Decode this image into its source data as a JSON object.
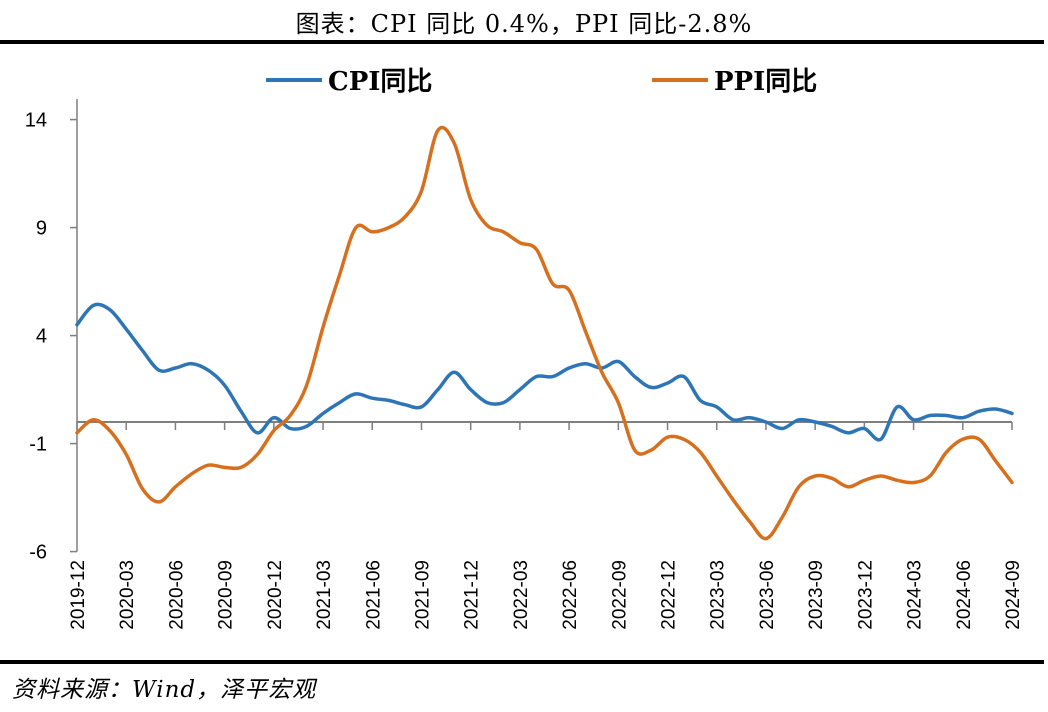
{
  "title": "图表：CPI 同比 0.4%，PPI 同比-2.8%",
  "source": "资料来源：Wind，泽平宏观",
  "colors": {
    "cpi": "#2e75b6",
    "ppi": "#d6701e",
    "axis": "#7f7f7f"
  },
  "chart_data": {
    "type": "line",
    "title": "图表：CPI 同比 0.4%，PPI 同比-2.8%",
    "xlabel": "",
    "ylabel": "",
    "ylim": [
      -6,
      14
    ],
    "yticks": [
      14,
      9,
      4,
      -1,
      -6
    ],
    "legend_position": "top",
    "grid": false,
    "x": [
      "2019-12",
      "2020-01",
      "2020-02",
      "2020-03",
      "2020-04",
      "2020-05",
      "2020-06",
      "2020-07",
      "2020-08",
      "2020-09",
      "2020-10",
      "2020-11",
      "2020-12",
      "2021-01",
      "2021-02",
      "2021-03",
      "2021-04",
      "2021-05",
      "2021-06",
      "2021-07",
      "2021-08",
      "2021-09",
      "2021-10",
      "2021-11",
      "2021-12",
      "2022-01",
      "2022-02",
      "2022-03",
      "2022-04",
      "2022-05",
      "2022-06",
      "2022-07",
      "2022-08",
      "2022-09",
      "2022-10",
      "2022-11",
      "2022-12",
      "2023-01",
      "2023-02",
      "2023-03",
      "2023-04",
      "2023-05",
      "2023-06",
      "2023-07",
      "2023-08",
      "2023-09",
      "2023-10",
      "2023-11",
      "2023-12",
      "2024-01",
      "2024-02",
      "2024-03",
      "2024-04",
      "2024-05",
      "2024-06",
      "2024-07",
      "2024-08",
      "2024-09"
    ],
    "xtick_labels": [
      "2019-12",
      "2020-03",
      "2020-06",
      "2020-09",
      "2020-12",
      "2021-03",
      "2021-06",
      "2021-09",
      "2021-12",
      "2022-03",
      "2022-06",
      "2022-09",
      "2022-12",
      "2023-03",
      "2023-06",
      "2023-09",
      "2023-12",
      "2024-03",
      "2024-06",
      "2024-09"
    ],
    "series": [
      {
        "name": "CPI同比",
        "values": [
          4.5,
          5.4,
          5.2,
          4.3,
          3.3,
          2.4,
          2.5,
          2.7,
          2.4,
          1.7,
          0.5,
          -0.5,
          0.2,
          -0.3,
          -0.2,
          0.4,
          0.9,
          1.3,
          1.1,
          1.0,
          0.8,
          0.7,
          1.5,
          2.3,
          1.5,
          0.9,
          0.9,
          1.5,
          2.1,
          2.1,
          2.5,
          2.7,
          2.5,
          2.8,
          2.1,
          1.6,
          1.8,
          2.1,
          1.0,
          0.7,
          0.1,
          0.2,
          0.0,
          -0.3,
          0.1,
          0.0,
          -0.2,
          -0.5,
          -0.3,
          -0.8,
          0.7,
          0.1,
          0.3,
          0.3,
          0.2,
          0.5,
          0.6,
          0.4
        ]
      },
      {
        "name": "PPI同比",
        "values": [
          -0.5,
          0.1,
          -0.4,
          -1.5,
          -3.1,
          -3.7,
          -3.0,
          -2.4,
          -2.0,
          -2.1,
          -2.1,
          -1.5,
          -0.4,
          0.3,
          1.7,
          4.4,
          6.8,
          9.0,
          8.8,
          9.0,
          9.5,
          10.7,
          13.5,
          12.9,
          10.3,
          9.1,
          8.8,
          8.3,
          8.0,
          6.4,
          6.1,
          4.2,
          2.3,
          0.9,
          -1.3,
          -1.3,
          -0.7,
          -0.8,
          -1.4,
          -2.5,
          -3.6,
          -4.6,
          -5.4,
          -4.4,
          -3.0,
          -2.5,
          -2.6,
          -3.0,
          -2.7,
          -2.5,
          -2.7,
          -2.8,
          -2.5,
          -1.4,
          -0.8,
          -0.8,
          -1.8,
          -2.8
        ]
      }
    ]
  }
}
